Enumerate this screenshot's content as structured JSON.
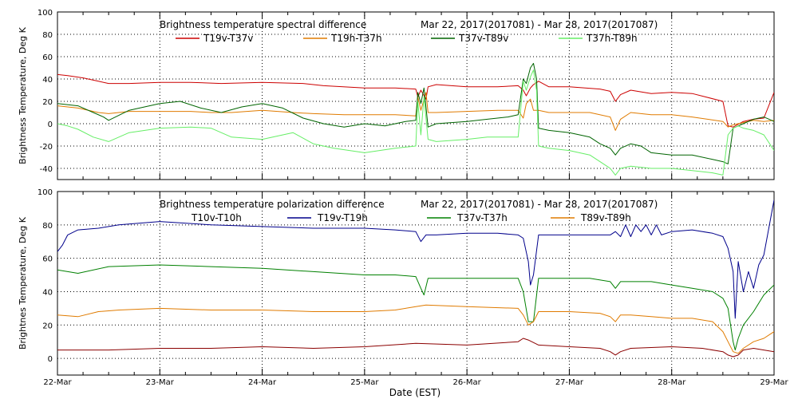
{
  "x_label": "Date (EST)",
  "x_ticks": [
    "22-Mar",
    "23-Mar",
    "24-Mar",
    "25-Mar",
    "26-Mar",
    "27-Mar",
    "28-Mar",
    "29-Mar"
  ],
  "chart_data": [
    {
      "type": "line",
      "title_left": "Brightness temperature spectral difference",
      "title_right": "Mar 22, 2017(2017081) - Mar 28, 2017(2017087)",
      "ylabel": "Brightness Temperature, Deg K",
      "ylim": [
        -50,
        100
      ],
      "yticks": [
        -40,
        -20,
        0,
        20,
        40,
        60,
        80,
        100
      ],
      "xlim": [
        0,
        7
      ],
      "x_tick_labels": [
        "22-Mar",
        "23-Mar",
        "24-Mar",
        "25-Mar",
        "26-Mar",
        "27-Mar",
        "28-Mar",
        "29-Mar"
      ],
      "grid": true,
      "series": [
        {
          "name": "T19v-T37v",
          "color": "#cc0000",
          "x": [
            0,
            0.1,
            0.25,
            0.4,
            0.5,
            0.7,
            1,
            1.3,
            1.6,
            2,
            2.4,
            2.6,
            3,
            3.3,
            3.5,
            3.52,
            3.55,
            3.6,
            3.62,
            3.7,
            4,
            4.3,
            4.5,
            4.55,
            4.58,
            4.62,
            4.65,
            4.7,
            4.8,
            5,
            5.3,
            5.4,
            5.45,
            5.5,
            5.6,
            5.8,
            6,
            6.2,
            6.5,
            6.55,
            6.6,
            6.7,
            6.8,
            6.9,
            7
          ],
          "y": [
            44,
            43,
            41,
            38,
            36,
            36,
            37,
            37,
            36,
            37,
            36,
            34,
            32,
            32,
            31,
            24,
            30,
            22,
            33,
            35,
            33,
            33,
            34,
            30,
            25,
            32,
            35,
            38,
            33,
            33,
            31,
            29,
            20,
            26,
            30,
            27,
            28,
            27,
            20,
            -2,
            -3,
            2,
            4,
            5,
            28
          ]
        },
        {
          "name": "T19h-T37h",
          "color": "#e07b00",
          "x": [
            0,
            0.2,
            0.4,
            0.5,
            0.7,
            1,
            1.3,
            1.5,
            1.7,
            2,
            2.3,
            2.5,
            2.8,
            3,
            3.3,
            3.5,
            3.52,
            3.55,
            3.6,
            3.62,
            3.7,
            4,
            4.3,
            4.5,
            4.55,
            4.58,
            4.62,
            4.65,
            4.7,
            4.8,
            5,
            5.2,
            5.4,
            5.45,
            5.5,
            5.6,
            5.8,
            6,
            6.2,
            6.5,
            6.55,
            6.6,
            6.7,
            6.8,
            6.9,
            7
          ],
          "y": [
            16,
            14,
            10,
            9,
            11,
            11,
            11,
            10,
            10,
            12,
            10,
            9,
            8,
            8,
            8,
            7,
            24,
            12,
            28,
            10,
            10,
            11,
            12,
            12,
            5,
            18,
            22,
            12,
            12,
            10,
            10,
            10,
            6,
            -6,
            4,
            10,
            8,
            8,
            6,
            2,
            -3,
            -1,
            1,
            3,
            2,
            3
          ]
        },
        {
          "name": "T37v-T89v",
          "color": "#006400",
          "x": [
            0,
            0.2,
            0.35,
            0.45,
            0.5,
            0.7,
            1,
            1.2,
            1.4,
            1.6,
            1.8,
            2,
            2.2,
            2.4,
            2.6,
            2.8,
            3,
            3.2,
            3.4,
            3.5,
            3.52,
            3.55,
            3.58,
            3.62,
            3.7,
            4,
            4.2,
            4.4,
            4.5,
            4.55,
            4.58,
            4.62,
            4.65,
            4.68,
            4.7,
            4.8,
            5,
            5.1,
            5.2,
            5.3,
            5.4,
            5.45,
            5.5,
            5.6,
            5.7,
            5.8,
            6,
            6.2,
            6.4,
            6.5,
            6.55,
            6.6,
            6.65,
            6.7,
            6.8,
            6.9,
            7
          ],
          "y": [
            18,
            16,
            10,
            6,
            3,
            12,
            18,
            20,
            14,
            10,
            15,
            18,
            14,
            5,
            0,
            -3,
            0,
            -2,
            2,
            3,
            28,
            18,
            32,
            -3,
            0,
            2,
            4,
            6,
            8,
            40,
            36,
            50,
            54,
            40,
            -4,
            -6,
            -8,
            -10,
            -12,
            -18,
            -22,
            -28,
            -22,
            -18,
            -20,
            -26,
            -28,
            -28,
            -32,
            -34,
            -36,
            -4,
            -2,
            0,
            4,
            6,
            2
          ]
        },
        {
          "name": "T37h-T89h",
          "color": "#66ee66",
          "x": [
            0,
            0.1,
            0.2,
            0.35,
            0.5,
            0.7,
            1,
            1.3,
            1.5,
            1.7,
            2,
            2.3,
            2.5,
            2.7,
            3,
            3.3,
            3.5,
            3.52,
            3.55,
            3.58,
            3.62,
            3.7,
            4,
            4.2,
            4.4,
            4.5,
            4.55,
            4.58,
            4.62,
            4.65,
            4.68,
            4.7,
            4.8,
            5,
            5.2,
            5.3,
            5.4,
            5.45,
            5.5,
            5.6,
            5.8,
            6,
            6.2,
            6.4,
            6.5,
            6.55,
            6.6,
            6.65,
            6.7,
            6.8,
            6.9,
            7
          ],
          "y": [
            0,
            -2,
            -5,
            -12,
            -16,
            -8,
            -4,
            -3,
            -4,
            -12,
            -14,
            -8,
            -18,
            -22,
            -26,
            -22,
            -20,
            20,
            -10,
            24,
            -14,
            -16,
            -14,
            -12,
            -12,
            -12,
            38,
            30,
            42,
            48,
            30,
            -20,
            -22,
            -24,
            -28,
            -34,
            -40,
            -46,
            -40,
            -38,
            -40,
            -40,
            -42,
            -44,
            -46,
            -10,
            -4,
            -2,
            -4,
            -6,
            -10,
            -24
          ]
        }
      ]
    },
    {
      "type": "line",
      "title_left": "Brightness temperature polarization difference",
      "title_right": "Mar 22, 2017(2017081) - Mar 28, 2017(2017087)",
      "ylabel": "Brightnes Temperature, Deg K",
      "ylim": [
        -10,
        100
      ],
      "yticks": [
        0,
        20,
        40,
        60,
        80,
        100
      ],
      "xlim": [
        0,
        7
      ],
      "x_tick_labels": [
        "22-Mar",
        "23-Mar",
        "24-Mar",
        "25-Mar",
        "26-Mar",
        "27-Mar",
        "28-Mar",
        "29-Mar"
      ],
      "grid": true,
      "series": [
        {
          "name": "T19v-T19h",
          "color": "#00008b",
          "x": [
            0,
            0.05,
            0.1,
            0.2,
            0.4,
            0.6,
            1,
            1.5,
            2,
            2.5,
            3,
            3.3,
            3.5,
            3.55,
            3.6,
            3.7,
            4,
            4.3,
            4.5,
            4.55,
            4.6,
            4.62,
            4.65,
            4.7,
            4.8,
            5,
            5.2,
            5.4,
            5.45,
            5.5,
            5.55,
            5.6,
            5.65,
            5.7,
            5.75,
            5.8,
            5.85,
            5.9,
            6,
            6.2,
            6.4,
            6.5,
            6.55,
            6.6,
            6.62,
            6.65,
            6.7,
            6.75,
            6.8,
            6.85,
            6.9,
            7
          ],
          "y": [
            64,
            68,
            74,
            77,
            78,
            80,
            82,
            80,
            79,
            78,
            78,
            77,
            76,
            70,
            74,
            74,
            75,
            75,
            74,
            72,
            58,
            44,
            50,
            74,
            74,
            74,
            74,
            74,
            76,
            73,
            80,
            73,
            80,
            76,
            80,
            74,
            80,
            74,
            76,
            77,
            75,
            73,
            66,
            52,
            24,
            58,
            40,
            52,
            42,
            56,
            62,
            95
          ]
        },
        {
          "name": "T37v-T37h",
          "color": "#008000",
          "x": [
            0,
            0.2,
            0.5,
            1,
            1.5,
            2,
            2.5,
            3,
            3.3,
            3.5,
            3.55,
            3.58,
            3.62,
            3.7,
            4,
            4.3,
            4.5,
            4.55,
            4.6,
            4.65,
            4.7,
            4.8,
            5,
            5.2,
            5.4,
            5.45,
            5.5,
            5.6,
            5.8,
            6,
            6.2,
            6.4,
            6.5,
            6.55,
            6.6,
            6.62,
            6.65,
            6.7,
            6.8,
            6.9,
            7
          ],
          "y": [
            53,
            51,
            55,
            56,
            55,
            54,
            52,
            50,
            50,
            49,
            42,
            38,
            48,
            48,
            48,
            48,
            48,
            40,
            22,
            22,
            48,
            48,
            48,
            48,
            46,
            42,
            46,
            46,
            46,
            44,
            42,
            40,
            36,
            30,
            10,
            5,
            12,
            20,
            28,
            38,
            44
          ]
        },
        {
          "name": "T89v-T89h",
          "color": "#e07b00",
          "x": [
            0,
            0.2,
            0.4,
            0.6,
            1,
            1.5,
            2,
            2.5,
            3,
            3.3,
            3.5,
            3.6,
            4,
            4.5,
            4.55,
            4.6,
            4.65,
            4.7,
            4.8,
            5,
            5.3,
            5.4,
            5.45,
            5.5,
            5.6,
            5.8,
            6,
            6.2,
            6.4,
            6.5,
            6.55,
            6.6,
            6.65,
            6.7,
            6.8,
            6.9,
            7
          ],
          "y": [
            26,
            25,
            28,
            29,
            30,
            29,
            29,
            28,
            28,
            29,
            31,
            32,
            31,
            30,
            26,
            20,
            22,
            28,
            28,
            28,
            27,
            25,
            22,
            26,
            26,
            25,
            24,
            24,
            22,
            16,
            10,
            4,
            3,
            6,
            10,
            12,
            16
          ]
        },
        {
          "name": "T10v-T10h",
          "color": "#8b0000",
          "x": [
            0,
            0.5,
            1,
            1.5,
            2,
            2.5,
            3,
            3.5,
            4,
            4.5,
            4.55,
            4.6,
            4.7,
            5,
            5.3,
            5.4,
            5.45,
            5.5,
            5.6,
            6,
            6.3,
            6.5,
            6.55,
            6.6,
            6.65,
            6.7,
            6.8,
            7
          ],
          "y": [
            5,
            5,
            6,
            6,
            7,
            6,
            7,
            9,
            8,
            10,
            12,
            11,
            8,
            7,
            6,
            4,
            2,
            4,
            6,
            7,
            6,
            4,
            2,
            1,
            2,
            5,
            6,
            4
          ]
        }
      ]
    }
  ]
}
